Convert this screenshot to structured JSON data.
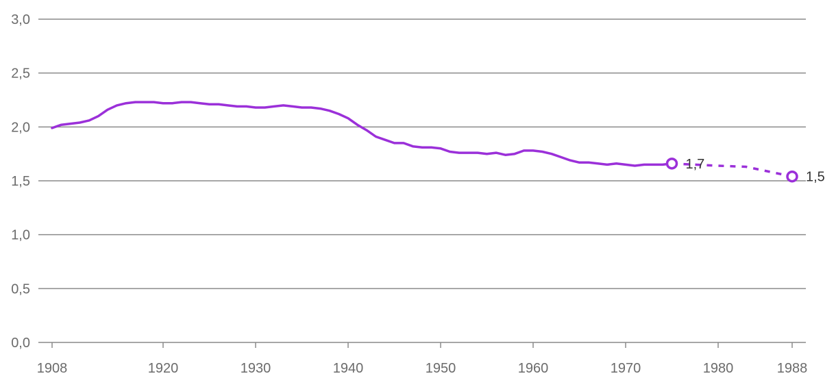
{
  "chart_data": {
    "type": "line",
    "title": "",
    "xlabel": "",
    "ylabel": "",
    "ylim": [
      0,
      3.0
    ],
    "xlim": [
      1908,
      1988
    ],
    "grid": true,
    "y_ticks": [
      {
        "value": 0,
        "label": "0,0"
      },
      {
        "value": 0.5,
        "label": "0,5"
      },
      {
        "value": 1.0,
        "label": "1,0"
      },
      {
        "value": 1.5,
        "label": "1,5"
      },
      {
        "value": 2.0,
        "label": "2,0"
      },
      {
        "value": 2.5,
        "label": "2,5"
      },
      {
        "value": 3.0,
        "label": "3,0"
      }
    ],
    "x_ticks": [
      {
        "value": 1908,
        "label": "1908"
      },
      {
        "value": 1920,
        "label": "1920"
      },
      {
        "value": 1930,
        "label": "1930"
      },
      {
        "value": 1940,
        "label": "1940"
      },
      {
        "value": 1950,
        "label": "1950"
      },
      {
        "value": 1960,
        "label": "1960"
      },
      {
        "value": 1970,
        "label": "1970"
      },
      {
        "value": 1980,
        "label": "1980"
      },
      {
        "value": 1988,
        "label": "1988"
      }
    ],
    "series": [
      {
        "style": "solid",
        "color": "#9b30d9",
        "x": [
          1908,
          1909,
          1910,
          1911,
          1912,
          1913,
          1914,
          1915,
          1916,
          1917,
          1918,
          1919,
          1920,
          1921,
          1922,
          1923,
          1924,
          1925,
          1926,
          1927,
          1928,
          1929,
          1930,
          1931,
          1932,
          1933,
          1934,
          1935,
          1936,
          1937,
          1938,
          1939,
          1940,
          1941,
          1942,
          1943,
          1944,
          1945,
          1946,
          1947,
          1948,
          1949,
          1950,
          1951,
          1952,
          1953,
          1954,
          1955,
          1956,
          1957,
          1958,
          1959,
          1960,
          1961,
          1962,
          1963,
          1964,
          1965,
          1966,
          1967,
          1968,
          1969,
          1970,
          1971,
          1972,
          1973,
          1974,
          1975
        ],
        "y": [
          1.99,
          2.02,
          2.03,
          2.04,
          2.06,
          2.1,
          2.16,
          2.2,
          2.22,
          2.23,
          2.23,
          2.23,
          2.22,
          2.22,
          2.23,
          2.23,
          2.22,
          2.21,
          2.21,
          2.2,
          2.19,
          2.19,
          2.18,
          2.18,
          2.19,
          2.2,
          2.19,
          2.18,
          2.18,
          2.17,
          2.15,
          2.12,
          2.08,
          2.02,
          1.97,
          1.91,
          1.88,
          1.85,
          1.85,
          1.82,
          1.81,
          1.81,
          1.8,
          1.77,
          1.76,
          1.76,
          1.76,
          1.75,
          1.76,
          1.74,
          1.75,
          1.78,
          1.78,
          1.77,
          1.75,
          1.72,
          1.69,
          1.67,
          1.67,
          1.66,
          1.65,
          1.66,
          1.65,
          1.64,
          1.65,
          1.65,
          1.65,
          1.66
        ]
      },
      {
        "style": "dashed",
        "color": "#9b30d9",
        "x": [
          1975,
          1980,
          1983,
          1988
        ],
        "y": [
          1.66,
          1.64,
          1.63,
          1.54
        ]
      }
    ],
    "markers": [
      {
        "x": 1975,
        "y": 1.66,
        "label": "1,7"
      },
      {
        "x": 1988,
        "y": 1.54,
        "label": "1,5"
      }
    ]
  }
}
